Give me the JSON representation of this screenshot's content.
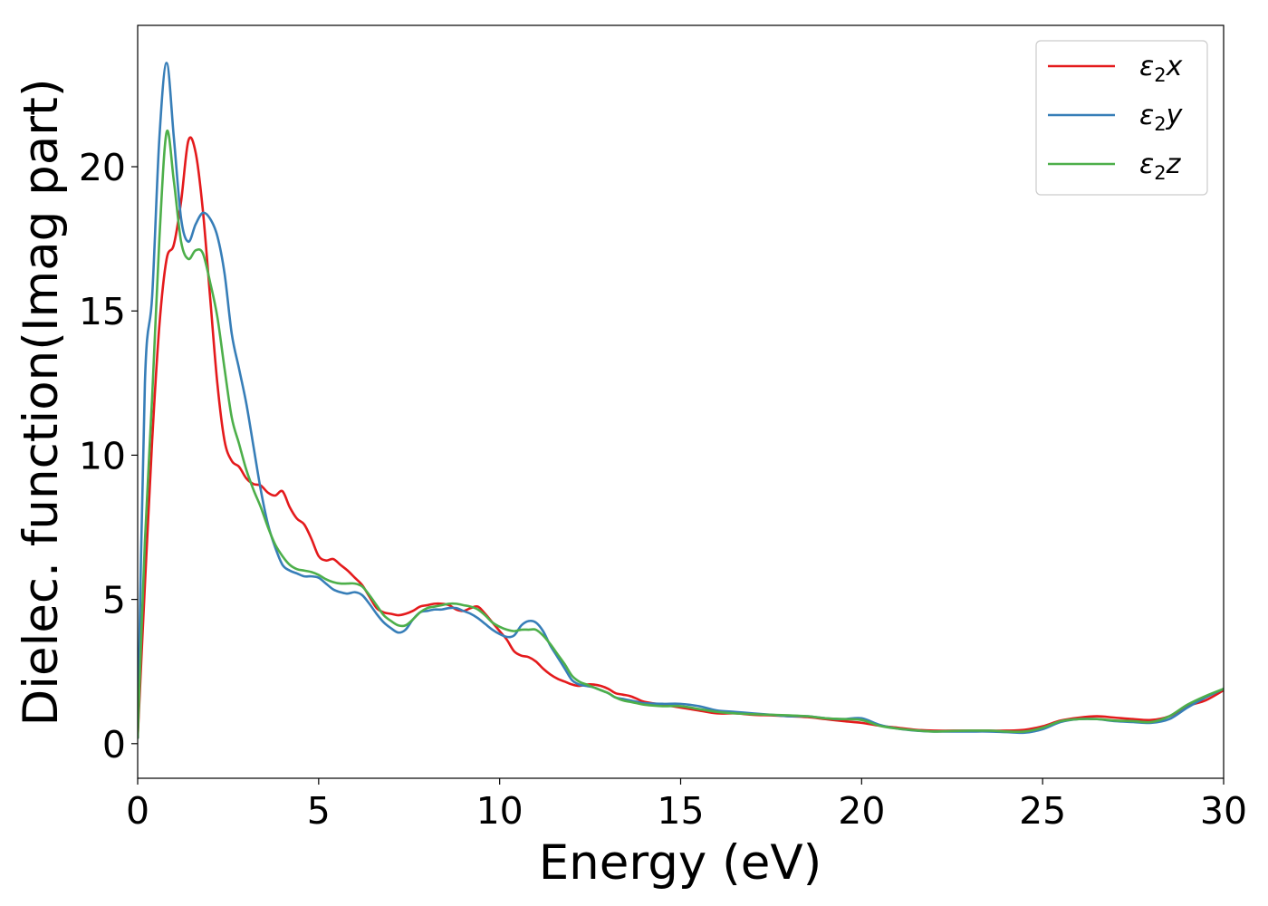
{
  "chart_data": {
    "type": "line",
    "xlabel": "Energy (eV)",
    "ylabel": "Dielec. function(Imag part)",
    "xlim": [
      0,
      30
    ],
    "ylim": [
      -1.2,
      24.9
    ],
    "x_ticks": [
      0,
      5,
      10,
      15,
      20,
      25,
      30
    ],
    "y_ticks": [
      0,
      5,
      10,
      15,
      20
    ],
    "x_tick_labels": [
      "0",
      "5",
      "10",
      "15",
      "20",
      "25",
      "30"
    ],
    "y_tick_labels": [
      "0",
      "5",
      "10",
      "15",
      "20"
    ],
    "grid": false,
    "legend_position": "top-right",
    "legend": [
      {
        "base": "ε",
        "sub": "2",
        "italic": "x"
      },
      {
        "base": "ε",
        "sub": "2",
        "italic": "y"
      },
      {
        "base": "ε",
        "sub": "2",
        "italic": "z"
      }
    ],
    "series": [
      {
        "name": "ε2x",
        "color": "#e41a1c",
        "x": [
          0,
          0.2,
          0.4,
          0.6,
          0.8,
          1.0,
          1.2,
          1.4,
          1.6,
          1.8,
          2.0,
          2.2,
          2.4,
          2.6,
          2.8,
          3.0,
          3.2,
          3.4,
          3.6,
          3.8,
          4.0,
          4.2,
          4.4,
          4.6,
          4.8,
          5.0,
          5.2,
          5.4,
          5.6,
          5.8,
          6.0,
          6.2,
          6.4,
          6.6,
          6.8,
          7.0,
          7.2,
          7.4,
          7.6,
          7.8,
          8.0,
          8.2,
          8.4,
          8.6,
          8.8,
          9.0,
          9.2,
          9.4,
          9.6,
          9.8,
          10.0,
          10.2,
          10.4,
          10.6,
          10.8,
          11.0,
          11.2,
          11.4,
          11.6,
          11.8,
          12.0,
          12.2,
          12.4,
          12.6,
          12.8,
          13.0,
          13.2,
          13.4,
          13.6,
          13.8,
          14.0,
          14.5,
          15.0,
          15.5,
          16.0,
          16.5,
          17.0,
          17.5,
          18.0,
          18.5,
          19.0,
          19.5,
          20.0,
          20.5,
          21.0,
          21.5,
          22.0,
          22.5,
          23.0,
          23.5,
          24.0,
          24.5,
          25.0,
          25.5,
          26.0,
          26.5,
          27.0,
          27.5,
          28.0,
          28.5,
          29.0,
          29.5,
          30.0
        ],
        "y": [
          0.2,
          5.5,
          10.5,
          14.5,
          16.8,
          17.3,
          18.8,
          20.9,
          20.5,
          18.5,
          15.5,
          12.5,
          10.5,
          9.8,
          9.6,
          9.2,
          9.0,
          8.95,
          8.7,
          8.6,
          8.75,
          8.2,
          7.8,
          7.6,
          7.1,
          6.5,
          6.35,
          6.4,
          6.2,
          6.0,
          5.75,
          5.5,
          5.1,
          4.7,
          4.55,
          4.5,
          4.45,
          4.5,
          4.6,
          4.75,
          4.8,
          4.85,
          4.85,
          4.8,
          4.65,
          4.6,
          4.7,
          4.75,
          4.5,
          4.2,
          3.9,
          3.6,
          3.2,
          3.05,
          3.0,
          2.85,
          2.6,
          2.4,
          2.25,
          2.15,
          2.05,
          2.0,
          2.05,
          2.05,
          2.0,
          1.9,
          1.75,
          1.7,
          1.65,
          1.55,
          1.45,
          1.35,
          1.25,
          1.15,
          1.05,
          1.05,
          1.0,
          0.98,
          0.95,
          0.92,
          0.85,
          0.78,
          0.72,
          0.62,
          0.55,
          0.48,
          0.45,
          0.45,
          0.45,
          0.45,
          0.45,
          0.48,
          0.6,
          0.8,
          0.9,
          0.95,
          0.9,
          0.85,
          0.82,
          0.95,
          1.3,
          1.5,
          1.85
        ]
      },
      {
        "name": "ε2y",
        "color": "#377eb8",
        "x": [
          0,
          0.2,
          0.4,
          0.6,
          0.8,
          1.0,
          1.2,
          1.4,
          1.6,
          1.8,
          2.0,
          2.2,
          2.4,
          2.6,
          2.8,
          3.0,
          3.2,
          3.4,
          3.6,
          3.8,
          4.0,
          4.2,
          4.4,
          4.6,
          4.8,
          5.0,
          5.2,
          5.4,
          5.6,
          5.8,
          6.0,
          6.2,
          6.4,
          6.6,
          6.8,
          7.0,
          7.2,
          7.4,
          7.6,
          7.8,
          8.0,
          8.2,
          8.4,
          8.6,
          8.8,
          9.0,
          9.2,
          9.4,
          9.6,
          9.8,
          10.0,
          10.2,
          10.4,
          10.6,
          10.8,
          11.0,
          11.2,
          11.4,
          11.6,
          11.8,
          12.0,
          12.2,
          12.4,
          12.6,
          12.8,
          13.0,
          13.2,
          13.4,
          13.6,
          13.8,
          14.0,
          14.5,
          15.0,
          15.5,
          16.0,
          16.5,
          17.0,
          17.5,
          18.0,
          18.5,
          19.0,
          19.5,
          20.0,
          20.5,
          21.0,
          21.5,
          22.0,
          22.5,
          23.0,
          23.5,
          24.0,
          24.5,
          25.0,
          25.5,
          26.0,
          26.5,
          27.0,
          27.5,
          28.0,
          28.5,
          29.0,
          29.5,
          30.0
        ],
        "y": [
          0.2,
          12.5,
          15.5,
          21.0,
          23.6,
          21.0,
          18.2,
          17.4,
          18.0,
          18.4,
          18.2,
          17.6,
          16.3,
          14.2,
          13.0,
          11.8,
          10.3,
          8.8,
          7.6,
          6.8,
          6.2,
          6.0,
          5.9,
          5.8,
          5.8,
          5.75,
          5.55,
          5.35,
          5.25,
          5.2,
          5.25,
          5.15,
          4.85,
          4.5,
          4.2,
          4.0,
          3.85,
          3.95,
          4.3,
          4.55,
          4.6,
          4.65,
          4.65,
          4.7,
          4.7,
          4.6,
          4.5,
          4.35,
          4.15,
          3.95,
          3.8,
          3.7,
          3.75,
          4.1,
          4.25,
          4.2,
          3.9,
          3.4,
          3.0,
          2.6,
          2.2,
          2.05,
          2.0,
          1.95,
          1.85,
          1.75,
          1.6,
          1.55,
          1.5,
          1.45,
          1.4,
          1.38,
          1.38,
          1.3,
          1.15,
          1.1,
          1.05,
          1.0,
          0.95,
          0.95,
          0.88,
          0.85,
          0.88,
          0.65,
          0.52,
          0.45,
          0.42,
          0.42,
          0.42,
          0.42,
          0.4,
          0.38,
          0.5,
          0.75,
          0.85,
          0.85,
          0.78,
          0.75,
          0.72,
          0.85,
          1.25,
          1.6,
          1.9
        ]
      },
      {
        "name": "ε2z",
        "color": "#4daf4a",
        "x": [
          0,
          0.2,
          0.4,
          0.6,
          0.8,
          1.0,
          1.2,
          1.4,
          1.6,
          1.8,
          2.0,
          2.2,
          2.4,
          2.6,
          2.8,
          3.0,
          3.2,
          3.4,
          3.6,
          3.8,
          4.0,
          4.2,
          4.4,
          4.6,
          4.8,
          5.0,
          5.2,
          5.4,
          5.6,
          5.8,
          6.0,
          6.2,
          6.4,
          6.6,
          6.8,
          7.0,
          7.2,
          7.4,
          7.6,
          7.8,
          8.0,
          8.2,
          8.4,
          8.6,
          8.8,
          9.0,
          9.2,
          9.4,
          9.6,
          9.8,
          10.0,
          10.2,
          10.4,
          10.6,
          10.8,
          11.0,
          11.2,
          11.4,
          11.6,
          11.8,
          12.0,
          12.2,
          12.4,
          12.6,
          12.8,
          13.0,
          13.2,
          13.4,
          13.6,
          13.8,
          14.0,
          14.5,
          15.0,
          15.5,
          16.0,
          16.5,
          17.0,
          17.5,
          18.0,
          18.5,
          19.0,
          19.5,
          20.0,
          20.5,
          21.0,
          21.5,
          22.0,
          22.5,
          23.0,
          23.5,
          24.0,
          24.5,
          25.0,
          25.5,
          26.0,
          26.5,
          27.0,
          27.5,
          28.0,
          28.5,
          29.0,
          29.5,
          30.0
        ],
        "y": [
          0.2,
          7.0,
          12.0,
          17.5,
          21.2,
          19.5,
          17.4,
          16.8,
          17.1,
          17.0,
          16.0,
          14.8,
          13.0,
          11.3,
          10.4,
          9.5,
          8.8,
          8.2,
          7.5,
          6.9,
          6.5,
          6.2,
          6.05,
          6.0,
          5.95,
          5.85,
          5.7,
          5.6,
          5.55,
          5.55,
          5.55,
          5.45,
          5.15,
          4.8,
          4.45,
          4.25,
          4.1,
          4.1,
          4.3,
          4.55,
          4.7,
          4.75,
          4.8,
          4.85,
          4.85,
          4.8,
          4.75,
          4.65,
          4.45,
          4.2,
          4.05,
          3.95,
          3.9,
          3.95,
          3.95,
          3.95,
          3.75,
          3.45,
          3.1,
          2.75,
          2.35,
          2.15,
          2.05,
          1.95,
          1.85,
          1.75,
          1.6,
          1.5,
          1.45,
          1.4,
          1.35,
          1.3,
          1.3,
          1.2,
          1.1,
          1.05,
          1.02,
          1.0,
          0.98,
          0.95,
          0.88,
          0.85,
          0.82,
          0.62,
          0.52,
          0.46,
          0.42,
          0.44,
          0.45,
          0.45,
          0.42,
          0.42,
          0.55,
          0.78,
          0.85,
          0.85,
          0.8,
          0.78,
          0.75,
          0.95,
          1.35,
          1.65,
          1.9
        ]
      }
    ]
  }
}
